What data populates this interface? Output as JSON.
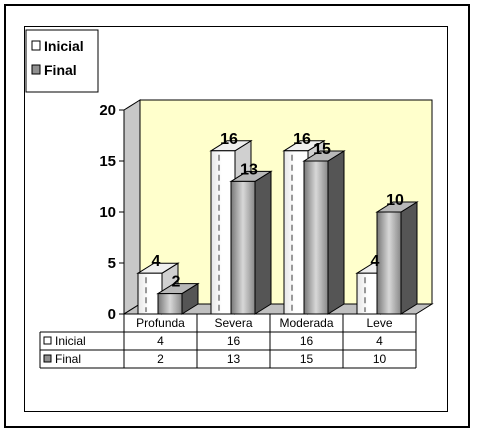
{
  "chart_data": {
    "type": "bar",
    "categories": [
      "Profunda",
      "Severa",
      "Moderada",
      "Leve"
    ],
    "series": [
      {
        "name": "Inicial",
        "values": [
          4,
          16,
          16,
          4
        ]
      },
      {
        "name": "Final",
        "values": [
          2,
          13,
          15,
          10
        ]
      }
    ],
    "ylim": [
      0,
      20
    ],
    "yticks": [
      0,
      5,
      10,
      15,
      20
    ],
    "legend_position": "top-left",
    "data_table": true,
    "colors": {
      "plot_background": "#ffffcc",
      "inicial_fill": "#ffffff",
      "final_fill": "#a0a0a0"
    }
  }
}
